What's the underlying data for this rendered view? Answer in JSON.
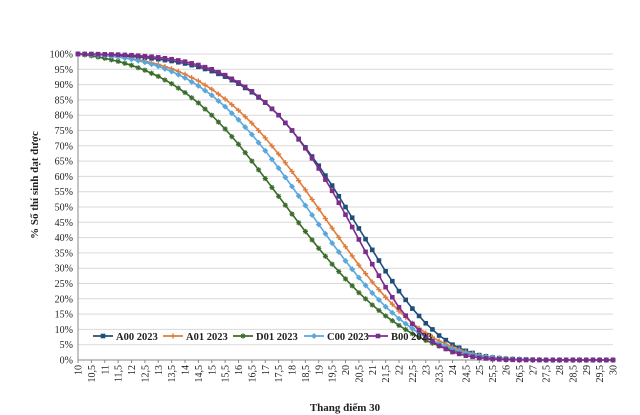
{
  "chart_data": {
    "type": "line",
    "xlabel": "Thang điểm 30",
    "ylabel": "% Số thí sinh đạt được",
    "xlim": [
      10,
      30
    ],
    "ylim": [
      0,
      100
    ],
    "x_tick_labels": [
      "10",
      "10,5",
      "11",
      "11,5",
      "12",
      "12,5",
      "13",
      "13,5",
      "14",
      "14,5",
      "15",
      "15,5",
      "16",
      "16,5",
      "17",
      "17,5",
      "18",
      "18,5",
      "19",
      "19,5",
      "20",
      "20,5",
      "21",
      "21,5",
      "22",
      "22,5",
      "23",
      "23,5",
      "24",
      "24,5",
      "25",
      "25,5",
      "26",
      "26,5",
      "27",
      "27,5",
      "28",
      "28,5",
      "29",
      "29,5",
      "30"
    ],
    "y_tick_labels": [
      "0%",
      "5%",
      "10%",
      "15%",
      "20%",
      "25%",
      "30%",
      "35%",
      "40%",
      "45%",
      "50%",
      "55%",
      "60%",
      "65%",
      "70%",
      "75%",
      "80%",
      "85%",
      "90%",
      "95%",
      "100%"
    ],
    "grid": true,
    "legend_position": "bottom-left",
    "x": [
      10,
      10.5,
      11,
      11.5,
      12,
      12.5,
      13,
      13.5,
      14,
      14.5,
      15,
      15.5,
      16,
      16.5,
      17,
      17.5,
      18,
      18.5,
      19,
      19.5,
      20,
      20.5,
      21,
      21.5,
      22,
      22.5,
      23,
      23.5,
      24,
      24.5,
      25,
      25.5,
      26,
      26.5,
      27,
      27.5,
      28,
      28.5,
      29,
      29.5,
      30
    ],
    "series": [
      {
        "name": "A00 2023",
        "color": "#1f4e79",
        "marker": "square",
        "values": [
          100,
          99.9,
          99.7,
          99.5,
          99.2,
          98.8,
          98.3,
          97.7,
          96.9,
          95.8,
          94.4,
          92.6,
          90.3,
          87.5,
          84.1,
          80,
          75,
          69.5,
          63.5,
          57,
          50,
          43,
          36,
          29,
          22.5,
          16.8,
          12,
          8,
          5,
          3,
          1.6,
          0.8,
          0.4,
          0.2,
          0.1,
          0,
          0,
          0,
          0,
          0,
          0
        ]
      },
      {
        "name": "A01 2023",
        "color": "#e07b39",
        "marker": "plus",
        "values": [
          100,
          99.8,
          99.5,
          99.1,
          98.5,
          97.7,
          96.6,
          95.2,
          93.4,
          91.2,
          88.5,
          85.3,
          81.6,
          77.4,
          72.6,
          67.3,
          61.6,
          55.6,
          49.4,
          43.1,
          37,
          31,
          25.5,
          20.5,
          16,
          12,
          8.8,
          6.2,
          4.2,
          2.7,
          1.6,
          0.9,
          0.5,
          0.2,
          0.1,
          0,
          0,
          0,
          0,
          0,
          0
        ]
      },
      {
        "name": "D01 2023",
        "color": "#3a6b2a",
        "marker": "star",
        "values": [
          100,
          99.4,
          98.6,
          97.6,
          96.3,
          94.7,
          92.7,
          90.3,
          87.4,
          84,
          80,
          75.5,
          70.5,
          65,
          59.3,
          53.5,
          47.7,
          42,
          36.5,
          31.3,
          26.5,
          22,
          18,
          14.4,
          11.3,
          8.6,
          6.4,
          4.6,
          3.2,
          2.1,
          1.3,
          0.8,
          0.4,
          0.2,
          0.1,
          0,
          0,
          0,
          0,
          0,
          0
        ]
      },
      {
        "name": "C00 2023",
        "color": "#5aa7dc",
        "marker": "diamond",
        "values": [
          100,
          99.8,
          99.5,
          99,
          98.3,
          97.3,
          96,
          94.3,
          92.2,
          89.6,
          86.5,
          82.8,
          78.5,
          73.7,
          68.4,
          62.7,
          56.7,
          50.5,
          44.3,
          38.2,
          32.4,
          26.9,
          21.9,
          17.4,
          13.5,
          10.2,
          7.5,
          5.3,
          3.6,
          2.3,
          1.4,
          0.8,
          0.4,
          0.2,
          0.1,
          0,
          0,
          0,
          0,
          0,
          0
        ]
      },
      {
        "name": "B00 2023",
        "color": "#7b2d8b",
        "marker": "square",
        "values": [
          100,
          100,
          99.9,
          99.8,
          99.6,
          99.3,
          98.9,
          98.3,
          97.5,
          96.4,
          95,
          93.1,
          90.7,
          87.8,
          84.2,
          80,
          75,
          69.2,
          62.6,
          55.3,
          47.5,
          39.4,
          31.3,
          23.8,
          17.2,
          11.8,
          7.6,
          4.6,
          2.6,
          1.4,
          0.7,
          0.3,
          0.1,
          0,
          0,
          0,
          0,
          0,
          0,
          0,
          0
        ]
      }
    ]
  }
}
